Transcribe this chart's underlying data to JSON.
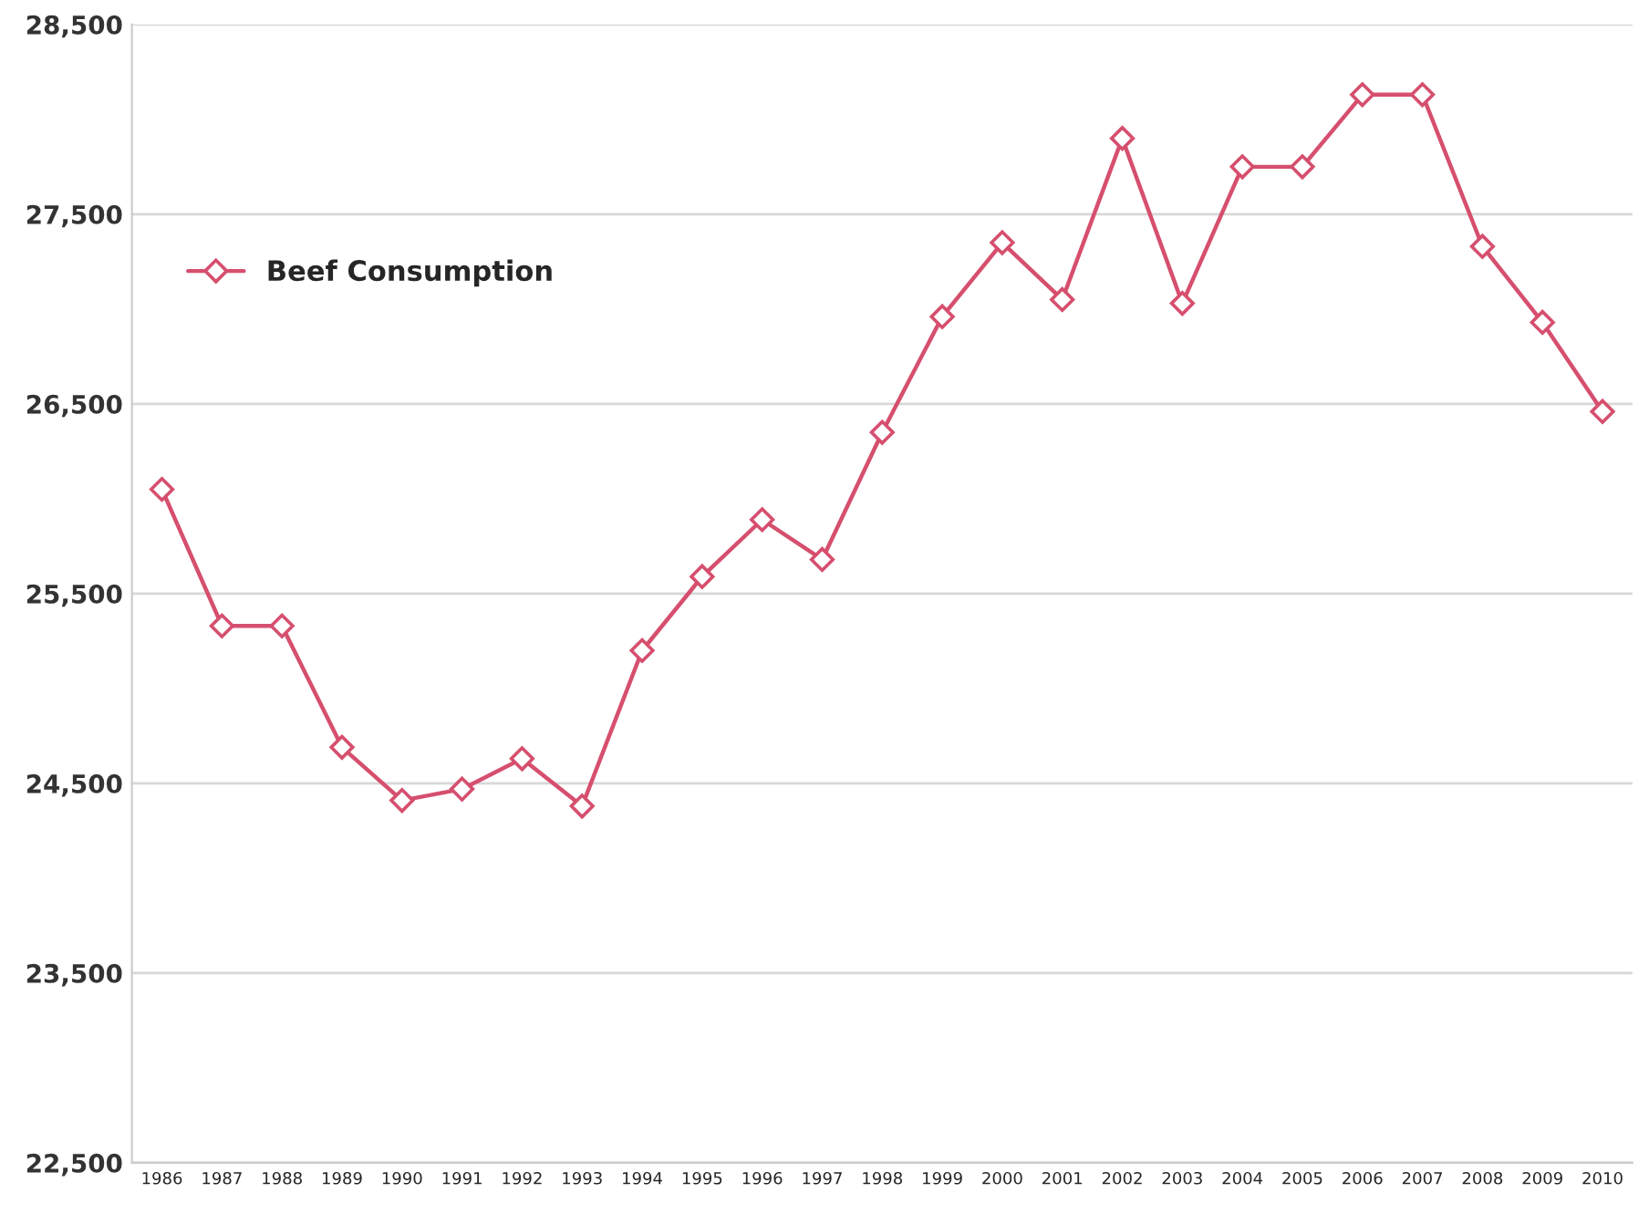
{
  "chart_data": {
    "type": "line",
    "categories": [
      "1986",
      "1987",
      "1988",
      "1989",
      "1990",
      "1991",
      "1992",
      "1993",
      "1994",
      "1995",
      "1996",
      "1997",
      "1998",
      "1999",
      "2000",
      "2001",
      "2002",
      "2003",
      "2004",
      "2005",
      "2006",
      "2007",
      "2008",
      "2009",
      "2010"
    ],
    "series": [
      {
        "name": "Beef Consumption",
        "color": "#d64f6e",
        "values": [
          26050,
          25330,
          25330,
          24690,
          24410,
          24470,
          24630,
          24380,
          25200,
          25590,
          25890,
          25680,
          26350,
          26960,
          27350,
          27050,
          27900,
          27030,
          27750,
          27750,
          28130,
          28130,
          27330,
          26930,
          26460
        ]
      }
    ],
    "ylim": [
      22500,
      28500
    ],
    "yticks": [
      {
        "value": 22500,
        "label": "22,500"
      },
      {
        "value": 23500,
        "label": "23,500"
      },
      {
        "value": 24500,
        "label": "24,500"
      },
      {
        "value": 25500,
        "label": "25,500"
      },
      {
        "value": 26500,
        "label": "26,500"
      },
      {
        "value": 27500,
        "label": "27,500"
      },
      {
        "value": 28500,
        "label": "28,500"
      }
    ],
    "grid": "y",
    "legend": "top left",
    "marker": "diamond",
    "line_style": "solid"
  }
}
